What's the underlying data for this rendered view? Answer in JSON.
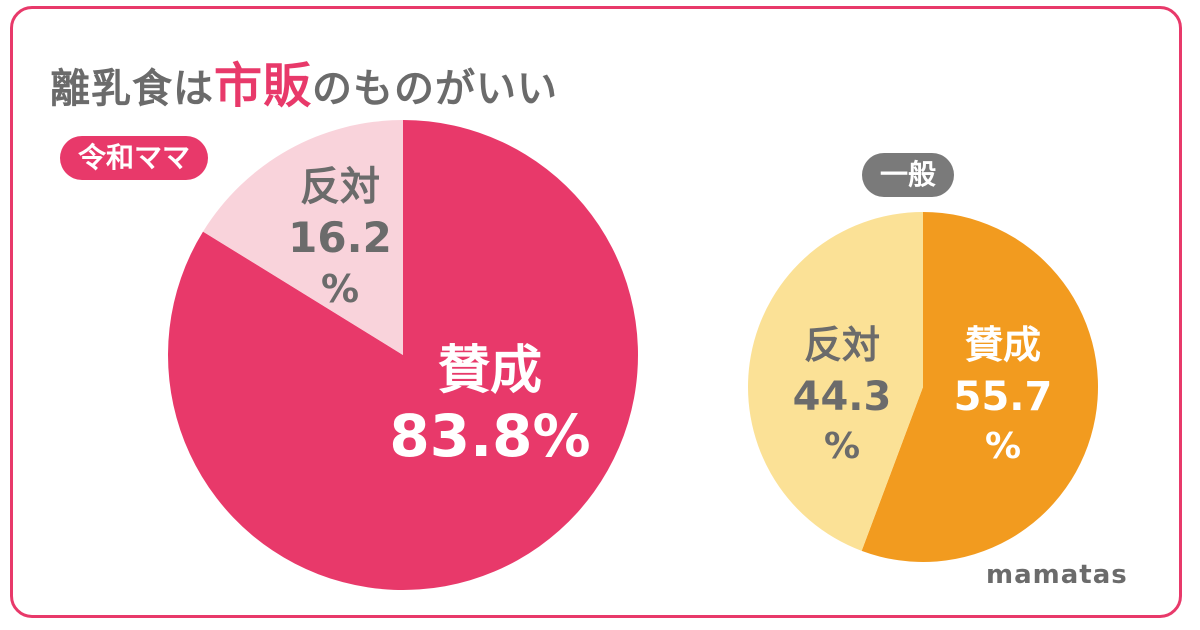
{
  "title": {
    "part1": "離乳食は",
    "accent": "市販",
    "part2": "のものがいい"
  },
  "brand": "mamatas",
  "colors": {
    "accent_pink": "#e8396a",
    "light_pink": "#f9d3db",
    "orange": "#f29b1f",
    "light_yellow": "#fbe196",
    "gray_text": "#6b6b6b",
    "badge_gray": "#7a7a7a"
  },
  "chart_data": [
    {
      "type": "pie",
      "group_label": "令和ママ",
      "slices": [
        {
          "label": "賛成",
          "value": 83.8,
          "display": "83.8%",
          "color": "#e8396a",
          "text_color": "#ffffff"
        },
        {
          "label": "反対",
          "value": 16.2,
          "display": "16.2",
          "unit": "%",
          "color": "#f9d3db",
          "text_color": "#6b6b6b"
        }
      ]
    },
    {
      "type": "pie",
      "group_label": "一般",
      "slices": [
        {
          "label": "賛成",
          "value": 55.7,
          "display": "55.7",
          "unit": "%",
          "color": "#f29b1f",
          "text_color": "#ffffff"
        },
        {
          "label": "反対",
          "value": 44.3,
          "display": "44.3",
          "unit": "%",
          "color": "#fbe196",
          "text_color": "#6b6b6b"
        }
      ]
    }
  ]
}
